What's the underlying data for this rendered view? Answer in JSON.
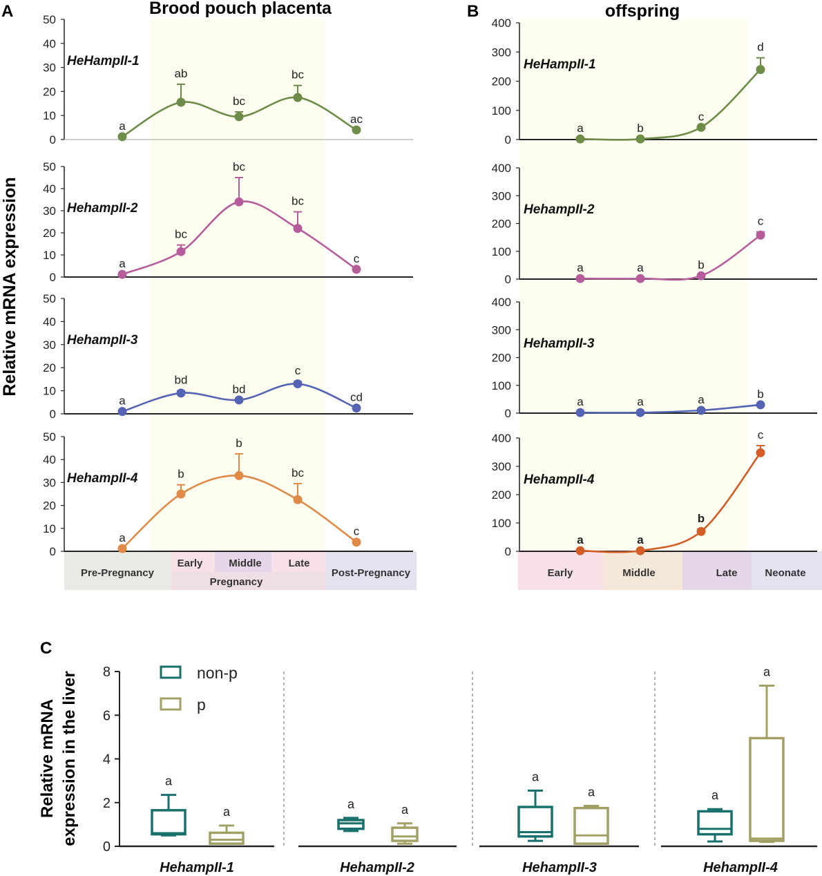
{
  "panel_labels": {
    "a": "A",
    "b": "B",
    "c": "C"
  },
  "panel_titles": {
    "a": "Brood pouch placenta",
    "b": "offspring"
  },
  "ylabel_ab": "Relative mRNA expression",
  "ylabel_c": [
    "Relative mRNA",
    "expression in the liver"
  ],
  "colors": {
    "gene1": "#6d8c47",
    "gene2": "#b65c9a",
    "gene3": "#5463b4",
    "gene4_a": "#e08a4a",
    "gene4_b": "#d25d27",
    "box_np": "#17706c",
    "box_p": "#a3a066",
    "shade": "#fdfdf0"
  },
  "stage_bar_a": {
    "pre": "Pre-Pregnancy",
    "early": "Early",
    "middle": "Middle",
    "late": "Late",
    "pregnancy": "Pregnancy",
    "post": "Post-Pregnancy"
  },
  "stage_bar_b": {
    "early": "Early",
    "middle": "Middle",
    "late": "Late",
    "neonate": "Neonate"
  },
  "chart_data": [
    {
      "type": "line",
      "panel": "A",
      "gene": "HeHampII-1",
      "x": [
        "Pre-Pregnancy",
        "Early",
        "Middle",
        "Late",
        "Post-Pregnancy"
      ],
      "values": [
        1.2,
        15.5,
        9.5,
        17.5,
        4
      ],
      "errors": [
        0,
        7.5,
        2,
        5,
        0
      ],
      "letters": [
        "a",
        "ab",
        "bc",
        "bc",
        "ac"
      ],
      "ylim": [
        0,
        50
      ],
      "yticks": [
        0,
        10,
        20,
        30,
        40,
        50
      ],
      "color": "#6d8c47"
    },
    {
      "type": "line",
      "panel": "A",
      "gene": "HehampII-2",
      "x": [
        "Pre-Pregnancy",
        "Early",
        "Middle",
        "Late",
        "Post-Pregnancy"
      ],
      "values": [
        1.2,
        11.5,
        34,
        22,
        3.5
      ],
      "errors": [
        0,
        3,
        11,
        7.5,
        0
      ],
      "letters": [
        "a",
        "bc",
        "bc",
        "bc",
        "c"
      ],
      "ylim": [
        0,
        50
      ],
      "yticks": [
        0,
        10,
        20,
        30,
        40,
        50
      ],
      "color": "#b65c9a"
    },
    {
      "type": "line",
      "panel": "A",
      "gene": "HehampII-3",
      "x": [
        "Pre-Pregnancy",
        "Early",
        "Middle",
        "Late",
        "Post-Pregnancy"
      ],
      "values": [
        1,
        9,
        6,
        13,
        2.5
      ],
      "errors": [
        0,
        1,
        0,
        1,
        0
      ],
      "letters": [
        "a",
        "bd",
        "bd",
        "c",
        "cd"
      ],
      "ylim": [
        0,
        50
      ],
      "yticks": [
        0,
        10,
        20,
        30,
        40,
        50
      ],
      "color": "#5463b4"
    },
    {
      "type": "line",
      "panel": "A",
      "gene": "HehampII-4",
      "x": [
        "Pre-Pregnancy",
        "Early",
        "Middle",
        "Late",
        "Post-Pregnancy"
      ],
      "values": [
        1.2,
        25,
        33,
        22.5,
        4
      ],
      "errors": [
        0,
        4,
        9.5,
        7,
        0
      ],
      "letters": [
        "a",
        "b",
        "b",
        "bc",
        "c"
      ],
      "ylim": [
        0,
        50
      ],
      "yticks": [
        0,
        10,
        20,
        30,
        40,
        50
      ],
      "color": "#e08a4a"
    },
    {
      "type": "line",
      "panel": "B",
      "gene": "HeHampII-1",
      "x": [
        "Early",
        "Middle",
        "Late",
        "Neonate"
      ],
      "values": [
        2,
        2,
        42,
        240
      ],
      "errors": [
        0,
        0,
        0,
        40
      ],
      "letters": [
        "a",
        "b",
        "c",
        "d"
      ],
      "ylim": [
        0,
        400
      ],
      "yticks": [
        0,
        100,
        200,
        300,
        400
      ],
      "color": "#6d8c47"
    },
    {
      "type": "line",
      "panel": "B",
      "gene": "HehampII-2",
      "x": [
        "Early",
        "Middle",
        "Late",
        "Neonate"
      ],
      "values": [
        2,
        2,
        12,
        158
      ],
      "errors": [
        0,
        0,
        0,
        12
      ],
      "letters": [
        "a",
        "a",
        "b",
        "c"
      ],
      "ylim": [
        0,
        400
      ],
      "yticks": [
        0,
        100,
        200,
        300,
        400
      ],
      "color": "#b65c9a"
    },
    {
      "type": "line",
      "panel": "B",
      "gene": "HehampII-3",
      "x": [
        "Early",
        "Middle",
        "Late",
        "Neonate"
      ],
      "values": [
        2,
        2,
        10,
        30
      ],
      "errors": [
        0,
        0,
        0,
        0
      ],
      "letters": [
        "a",
        "a",
        "a",
        "b"
      ],
      "ylim": [
        0,
        400
      ],
      "yticks": [
        0,
        100,
        200,
        300,
        400
      ],
      "color": "#5463b4"
    },
    {
      "type": "line",
      "panel": "B",
      "gene": "HehampII-4",
      "x": [
        "Early",
        "Middle",
        "Late",
        "Neonate"
      ],
      "values": [
        2,
        2,
        70,
        348
      ],
      "errors": [
        0,
        0,
        8,
        25
      ],
      "letters": [
        "a",
        "a",
        "b",
        "c"
      ],
      "ylim": [
        0,
        400
      ],
      "yticks": [
        0,
        100,
        200,
        300,
        400
      ],
      "color": "#d25d27"
    },
    {
      "type": "box",
      "panel": "C",
      "ylabel": "Relative mRNA expression in the liver",
      "ylim": [
        0,
        8
      ],
      "yticks": [
        0,
        2,
        4,
        6,
        8
      ],
      "legend": [
        "non-p",
        "p"
      ],
      "groups": [
        {
          "gene": "HehampII-1",
          "boxes": [
            {
              "series": "non-p",
              "min": 0.5,
              "q1": 0.55,
              "median": 0.6,
              "q3": 1.65,
              "max": 2.35,
              "letter": "a"
            },
            {
              "series": "p",
              "min": 0.12,
              "q1": 0.12,
              "median": 0.3,
              "q3": 0.62,
              "max": 0.95,
              "letter": "a"
            }
          ]
        },
        {
          "gene": "HehampII-2",
          "boxes": [
            {
              "series": "non-p",
              "min": 0.7,
              "q1": 0.8,
              "median": 1.05,
              "q3": 1.2,
              "max": 1.3,
              "letter": "a"
            },
            {
              "series": "p",
              "min": 0.12,
              "q1": 0.25,
              "median": 0.45,
              "q3": 0.85,
              "max": 1.05,
              "letter": "a"
            }
          ]
        },
        {
          "gene": "HehampII-3",
          "boxes": [
            {
              "series": "non-p",
              "min": 0.25,
              "q1": 0.45,
              "median": 0.65,
              "q3": 1.8,
              "max": 2.55,
              "letter": "a"
            },
            {
              "series": "p",
              "min": 0.12,
              "q1": 0.12,
              "median": 0.5,
              "q3": 1.75,
              "max": 1.85,
              "letter": "a"
            }
          ]
        },
        {
          "gene": "HehampII-4",
          "boxes": [
            {
              "series": "non-p",
              "min": 0.22,
              "q1": 0.55,
              "median": 0.8,
              "q3": 1.6,
              "max": 1.7,
              "letter": "a"
            },
            {
              "series": "p",
              "min": 0.2,
              "q1": 0.25,
              "median": 0.35,
              "q3": 4.95,
              "max": 7.35,
              "letter": "a"
            }
          ]
        }
      ]
    }
  ]
}
